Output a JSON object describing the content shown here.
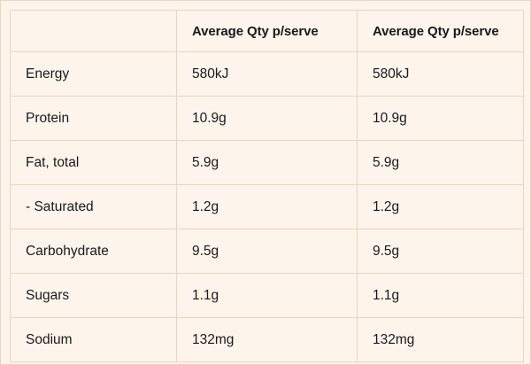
{
  "table": {
    "headers": [
      "",
      "Average Qty p/serve",
      "Average Qty p/serve"
    ],
    "rows": [
      {
        "label": "Energy",
        "col1": "580kJ",
        "col2": "580kJ"
      },
      {
        "label": "Protein",
        "col1": "10.9g",
        "col2": "10.9g"
      },
      {
        "label": "Fat, total",
        "col1": "5.9g",
        "col2": "5.9g"
      },
      {
        "label": "- Saturated",
        "col1": "1.2g",
        "col2": "1.2g"
      },
      {
        "label": "Carbohydrate",
        "col1": "9.5g",
        "col2": "9.5g"
      },
      {
        "label": "Sugars",
        "col1": "1.1g",
        "col2": "1.1g"
      },
      {
        "label": "Sodium",
        "col1": "132mg",
        "col2": "132mg"
      }
    ]
  },
  "colors": {
    "background": "#fdf4ec",
    "border": "#f0d2bd",
    "text": "#1a1a1a"
  }
}
